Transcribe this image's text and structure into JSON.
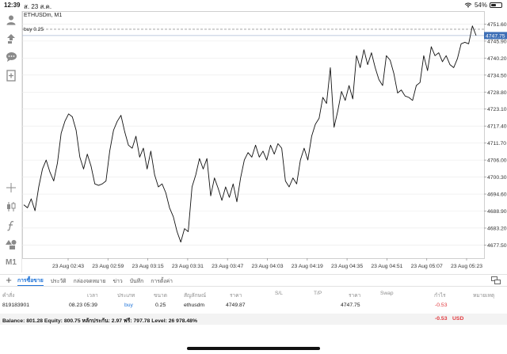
{
  "status_bar": {
    "time": "12:39",
    "date": "ส. 23 ส.ค.",
    "battery": "54%",
    "battery_level": 0.54
  },
  "chart": {
    "symbol": "ETHUSDm, M1",
    "buy_line_label": "buy 0.25",
    "current_price": "4747.75",
    "colors": {
      "line": "#111111",
      "current_price_bg": "#3d6fb6",
      "buy_line": "#9a9a9a",
      "grid": "#e9e9e9"
    }
  },
  "toolbar": {
    "items": [
      {
        "name": "account",
        "icon": "person-icon"
      },
      {
        "name": "trade",
        "icon": "trade-icon"
      },
      {
        "name": "chat",
        "icon": "chat-icon"
      },
      {
        "name": "new-order",
        "icon": "add-document-icon"
      },
      {
        "name": "crosshair",
        "icon": "crosshair-icon"
      },
      {
        "name": "chart-type",
        "icon": "candles-icon"
      },
      {
        "name": "indicators",
        "icon": "function-icon"
      },
      {
        "name": "objects",
        "icon": "shapes-icon"
      }
    ],
    "timeframe": "M1"
  },
  "chart_data": {
    "type": "line",
    "ylim": [
      4673.1,
      4754.1
    ],
    "y_ticks": [
      "4751.60",
      "4745.90",
      "4740.20",
      "4734.50",
      "4728.80",
      "4723.10",
      "4717.40",
      "4711.70",
      "4706.00",
      "4700.30",
      "4694.60",
      "4688.90",
      "4683.20",
      "4677.50"
    ],
    "x_ticks": [
      "23 Aug 02:43",
      "23 Aug 02:59",
      "23 Aug 03:15",
      "23 Aug 03:31",
      "23 Aug 03:47",
      "23 Aug 04:03",
      "23 Aug 04:19",
      "23 Aug 04:35",
      "23 Aug 04:51",
      "23 Aug 05:07",
      "23 Aug 05:23"
    ],
    "buy_level": 4749.87,
    "current_price": 4747.75,
    "series": [
      {
        "values": [
          4691.0,
          4690.0,
          4693.0,
          4689.0,
          4697.0,
          4703.0,
          4706.0,
          4702.0,
          4699.0,
          4705.0,
          4715.0,
          4719.0,
          4721.5,
          4720.5,
          4716.0,
          4707.0,
          4703.0,
          4708.0,
          4704.0,
          4698.0,
          4697.5,
          4698.0,
          4699.0,
          4709.0,
          4716.0,
          4719.0,
          4721.0,
          4715.5,
          4711.0,
          4710.0,
          4714.0,
          4707.0,
          4710.0,
          4703.0,
          4709.0,
          4701.0,
          4697.0,
          4698.0,
          4695.0,
          4690.0,
          4687.0,
          4682.0,
          4678.5,
          4683.0,
          4682.0,
          4697.0,
          4701.0,
          4706.5,
          4703.0,
          4706.5,
          4694.0,
          4700.0,
          4696.5,
          4692.5,
          4697.0,
          4693.5,
          4698.0,
          4692.0,
          4700.0,
          4706.0,
          4708.5,
          4707.0,
          4711.0,
          4707.0,
          4709.0,
          4706.0,
          4711.0,
          4708.0,
          4711.5,
          4710.0,
          4699.0,
          4697.0,
          4700.0,
          4698.0,
          4706.0,
          4710.0,
          4706.0,
          4714.0,
          4718.0,
          4720.0,
          4727.0,
          4725.0,
          4737.0,
          4717.0,
          4722.5,
          4729.0,
          4726.0,
          4731.0,
          4726.5,
          4741.0,
          4737.0,
          4743.0,
          4738.0,
          4742.0,
          4737.0,
          4733.0,
          4731.0,
          4741.0,
          4739.5,
          4735.0,
          4728.5,
          4729.5,
          4727.5,
          4727.0,
          4726.0,
          4731.0,
          4732.0,
          4741.0,
          4736.0,
          4744.0,
          4741.0,
          4742.0,
          4739.0,
          4741.0,
          4738.0,
          4737.0,
          4740.0,
          4745.0,
          4745.5,
          4745.0,
          4751.0,
          4747.75
        ]
      }
    ]
  },
  "tabs": [
    {
      "label": "การซื้อขาย",
      "active": true
    },
    {
      "label": "ประวัติ",
      "active": false
    },
    {
      "label": "กล่องจดหมาย",
      "active": false
    },
    {
      "label": "ข่าว",
      "active": false
    },
    {
      "label": "บันทึก",
      "active": false
    },
    {
      "label": "การตั้งค่า",
      "active": false
    }
  ],
  "table": {
    "headers": {
      "order": "คำสั่ง",
      "time": "เวลา",
      "type": "ประเภท",
      "volume": "ขนาด",
      "symbol": "สัญลักษณ์",
      "price": "ราคา",
      "sl": "S/L",
      "tp": "T/P",
      "price2": "ราคา",
      "swap": "Swap",
      "profit": "กำไร",
      "comment": "หมายเหตุ"
    },
    "rows": [
      {
        "order": "819183901",
        "time": "08.23 05:39",
        "type": "buy",
        "volume": "0.25",
        "symbol": "ethusdm",
        "price": "4749.87",
        "current": "4747.75",
        "profit": "-0.53"
      }
    ]
  },
  "balance": {
    "text": "Balance: 801.28 Equity: 800.75 หลักประกัน: 2.97 ฟรี: 797.78 Level: 26 978.48%",
    "pl": "-0.53",
    "currency": "USD"
  }
}
